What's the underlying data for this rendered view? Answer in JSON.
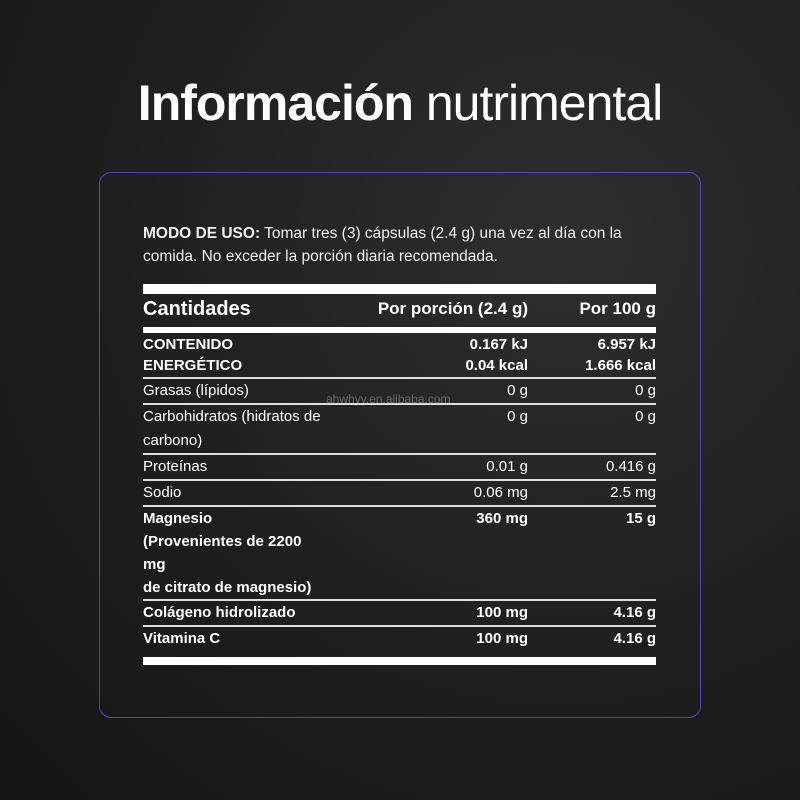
{
  "title": {
    "bold": "Información",
    "light": "nutrimental"
  },
  "usage": {
    "label": "MODO DE USO:",
    "text": " Tomar tres (3) cápsulas (2.4 g) una vez al día con la comida. No exceder la porción diaria recomendada."
  },
  "table": {
    "headers": [
      "Cantidades",
      "Por porción (2.4 g)",
      "Por 100 g"
    ],
    "energy": {
      "label_1": "CONTENIDO",
      "label_2": "ENERGÉTICO",
      "portion_1": "0.167 kJ",
      "portion_2": "0.04 kcal",
      "per100_1": "6.957 kJ",
      "per100_2": "1.666 kcal"
    },
    "rows": [
      {
        "name": "Grasas (lípidos)",
        "portion": "0 g",
        "per100": "0 g"
      },
      {
        "name": "Carbohidratos (hidratos de carbono)",
        "portion": "0 g",
        "per100": "0 g"
      },
      {
        "name": "Proteínas",
        "portion": "0.01 g",
        "per100": "0.416 g"
      },
      {
        "name": "Sodio",
        "portion": "0.06 mg",
        "per100": "2.5 mg"
      }
    ],
    "magnesio": {
      "name_1": "Magnesio",
      "name_2": "(Provenientes de 2200 mg",
      "name_3": "de citrato de magnesio)",
      "portion": "360 mg",
      "per100": "15 g"
    },
    "bold_rows": [
      {
        "name": "Colágeno hidrolizado",
        "portion": "100 mg",
        "per100": "4.16 g"
      },
      {
        "name": "Vitamina C",
        "portion": "100 mg",
        "per100": "4.16 g"
      }
    ]
  },
  "watermark": "ahwhyy.en.alibaba.com"
}
